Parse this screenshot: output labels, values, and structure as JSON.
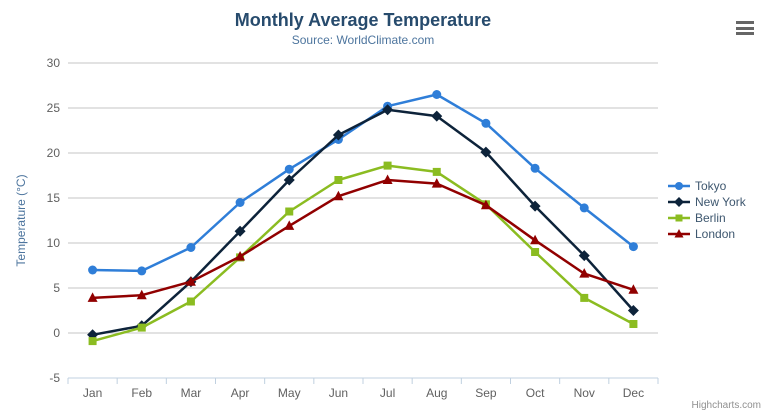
{
  "header": {
    "title": "Monthly Average Temperature",
    "subtitle": "Source: WorldClimate.com"
  },
  "credits": {
    "label": "Highcharts.com"
  },
  "context_menu": {
    "icon": "hamburger-icon"
  },
  "chart_data": {
    "type": "line",
    "title": "Monthly Average Temperature",
    "subtitle": "Source: WorldClimate.com",
    "categories": [
      "Jan",
      "Feb",
      "Mar",
      "Apr",
      "May",
      "Jun",
      "Jul",
      "Aug",
      "Sep",
      "Oct",
      "Nov",
      "Dec"
    ],
    "xlabel": "",
    "ylabel": "Temperature (°C)",
    "ylim": [
      -5,
      30
    ],
    "ytick_step": 5,
    "ytick_labels": [
      "-5",
      "0",
      "5",
      "10",
      "15",
      "20",
      "25",
      "30"
    ],
    "grid": true,
    "legend_position": "right",
    "series": [
      {
        "name": "Tokyo",
        "color": "#2f7ed8",
        "marker": "circle",
        "values": [
          7.0,
          6.9,
          9.5,
          14.5,
          18.2,
          21.5,
          25.2,
          26.5,
          23.3,
          18.3,
          13.9,
          9.6
        ]
      },
      {
        "name": "New York",
        "color": "#0d233a",
        "marker": "diamond",
        "values": [
          -0.2,
          0.8,
          5.7,
          11.3,
          17.0,
          22.0,
          24.8,
          24.1,
          20.1,
          14.1,
          8.6,
          2.5
        ]
      },
      {
        "name": "Berlin",
        "color": "#8bbc21",
        "marker": "square",
        "values": [
          -0.9,
          0.6,
          3.5,
          8.4,
          13.5,
          17.0,
          18.6,
          17.9,
          14.3,
          9.0,
          3.9,
          1.0
        ]
      },
      {
        "name": "London",
        "color": "#910000",
        "marker": "triangle",
        "values": [
          3.9,
          4.2,
          5.7,
          8.5,
          11.9,
          15.2,
          17.0,
          16.6,
          14.2,
          10.3,
          6.6,
          4.8
        ]
      }
    ]
  },
  "colors": {
    "title_text": "#274b6d",
    "subtitle_text": "#4d759e",
    "axis_label": "#606060",
    "axis_title": "#4d759e",
    "grid_line": "#c6c6c6",
    "axis_line": "#c0d0e0",
    "legend_text": "#3e576f",
    "credits_text": "#909090",
    "hamburger": "#666666"
  }
}
